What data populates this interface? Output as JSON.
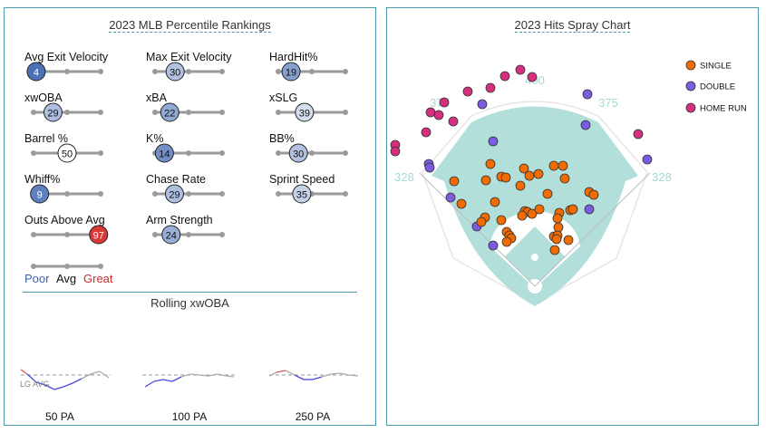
{
  "left_title": "2023 MLB Percentile Rankings",
  "metrics": [
    {
      "label": "Avg Exit Velocity",
      "pct": 4
    },
    {
      "label": "Max Exit Velocity",
      "pct": 30
    },
    {
      "label": "HardHit%",
      "pct": 19
    },
    {
      "label": "xwOBA",
      "pct": 29
    },
    {
      "label": "xBA",
      "pct": 22
    },
    {
      "label": "xSLG",
      "pct": 39
    },
    {
      "label": "Barrel %",
      "pct": 50
    },
    {
      "label": "K%",
      "pct": 14
    },
    {
      "label": "BB%",
      "pct": 30
    },
    {
      "label": "Whiff%",
      "pct": 9
    },
    {
      "label": "Chase Rate",
      "pct": 29
    },
    {
      "label": "Sprint Speed",
      "pct": 35
    },
    {
      "label": "Outs Above Avg",
      "pct": 97
    },
    {
      "label": "Arm Strength",
      "pct": 24
    }
  ],
  "scale_legend": {
    "poor": "Poor",
    "avg": "Avg",
    "great": "Great"
  },
  "colors": {
    "poor": "#3b64b0",
    "avg": "#ffffff",
    "great": "#d42b2b",
    "border": "#4a9aad",
    "single": "#f26b00",
    "double": "#7b5ce0",
    "home_run": "#d62f7f",
    "field": "#b3dfdb"
  },
  "rolling": {
    "title": "Rolling xwOBA",
    "lg_avg": "LG AVG",
    "windows": [
      "50 PA",
      "100 PA",
      "250 PA"
    ]
  },
  "chart_data": {
    "type": "scatter",
    "title": "2023 Hits Spray Chart",
    "fences": [
      "328",
      "375",
      "400",
      "375",
      "328"
    ],
    "legend": [
      "SINGLE",
      "DOUBLE",
      "HOME RUN"
    ],
    "legend_placement": "top-right",
    "counts": {
      "SINGLE": 39,
      "DOUBLE": 11,
      "HOME RUN": 13
    }
  }
}
